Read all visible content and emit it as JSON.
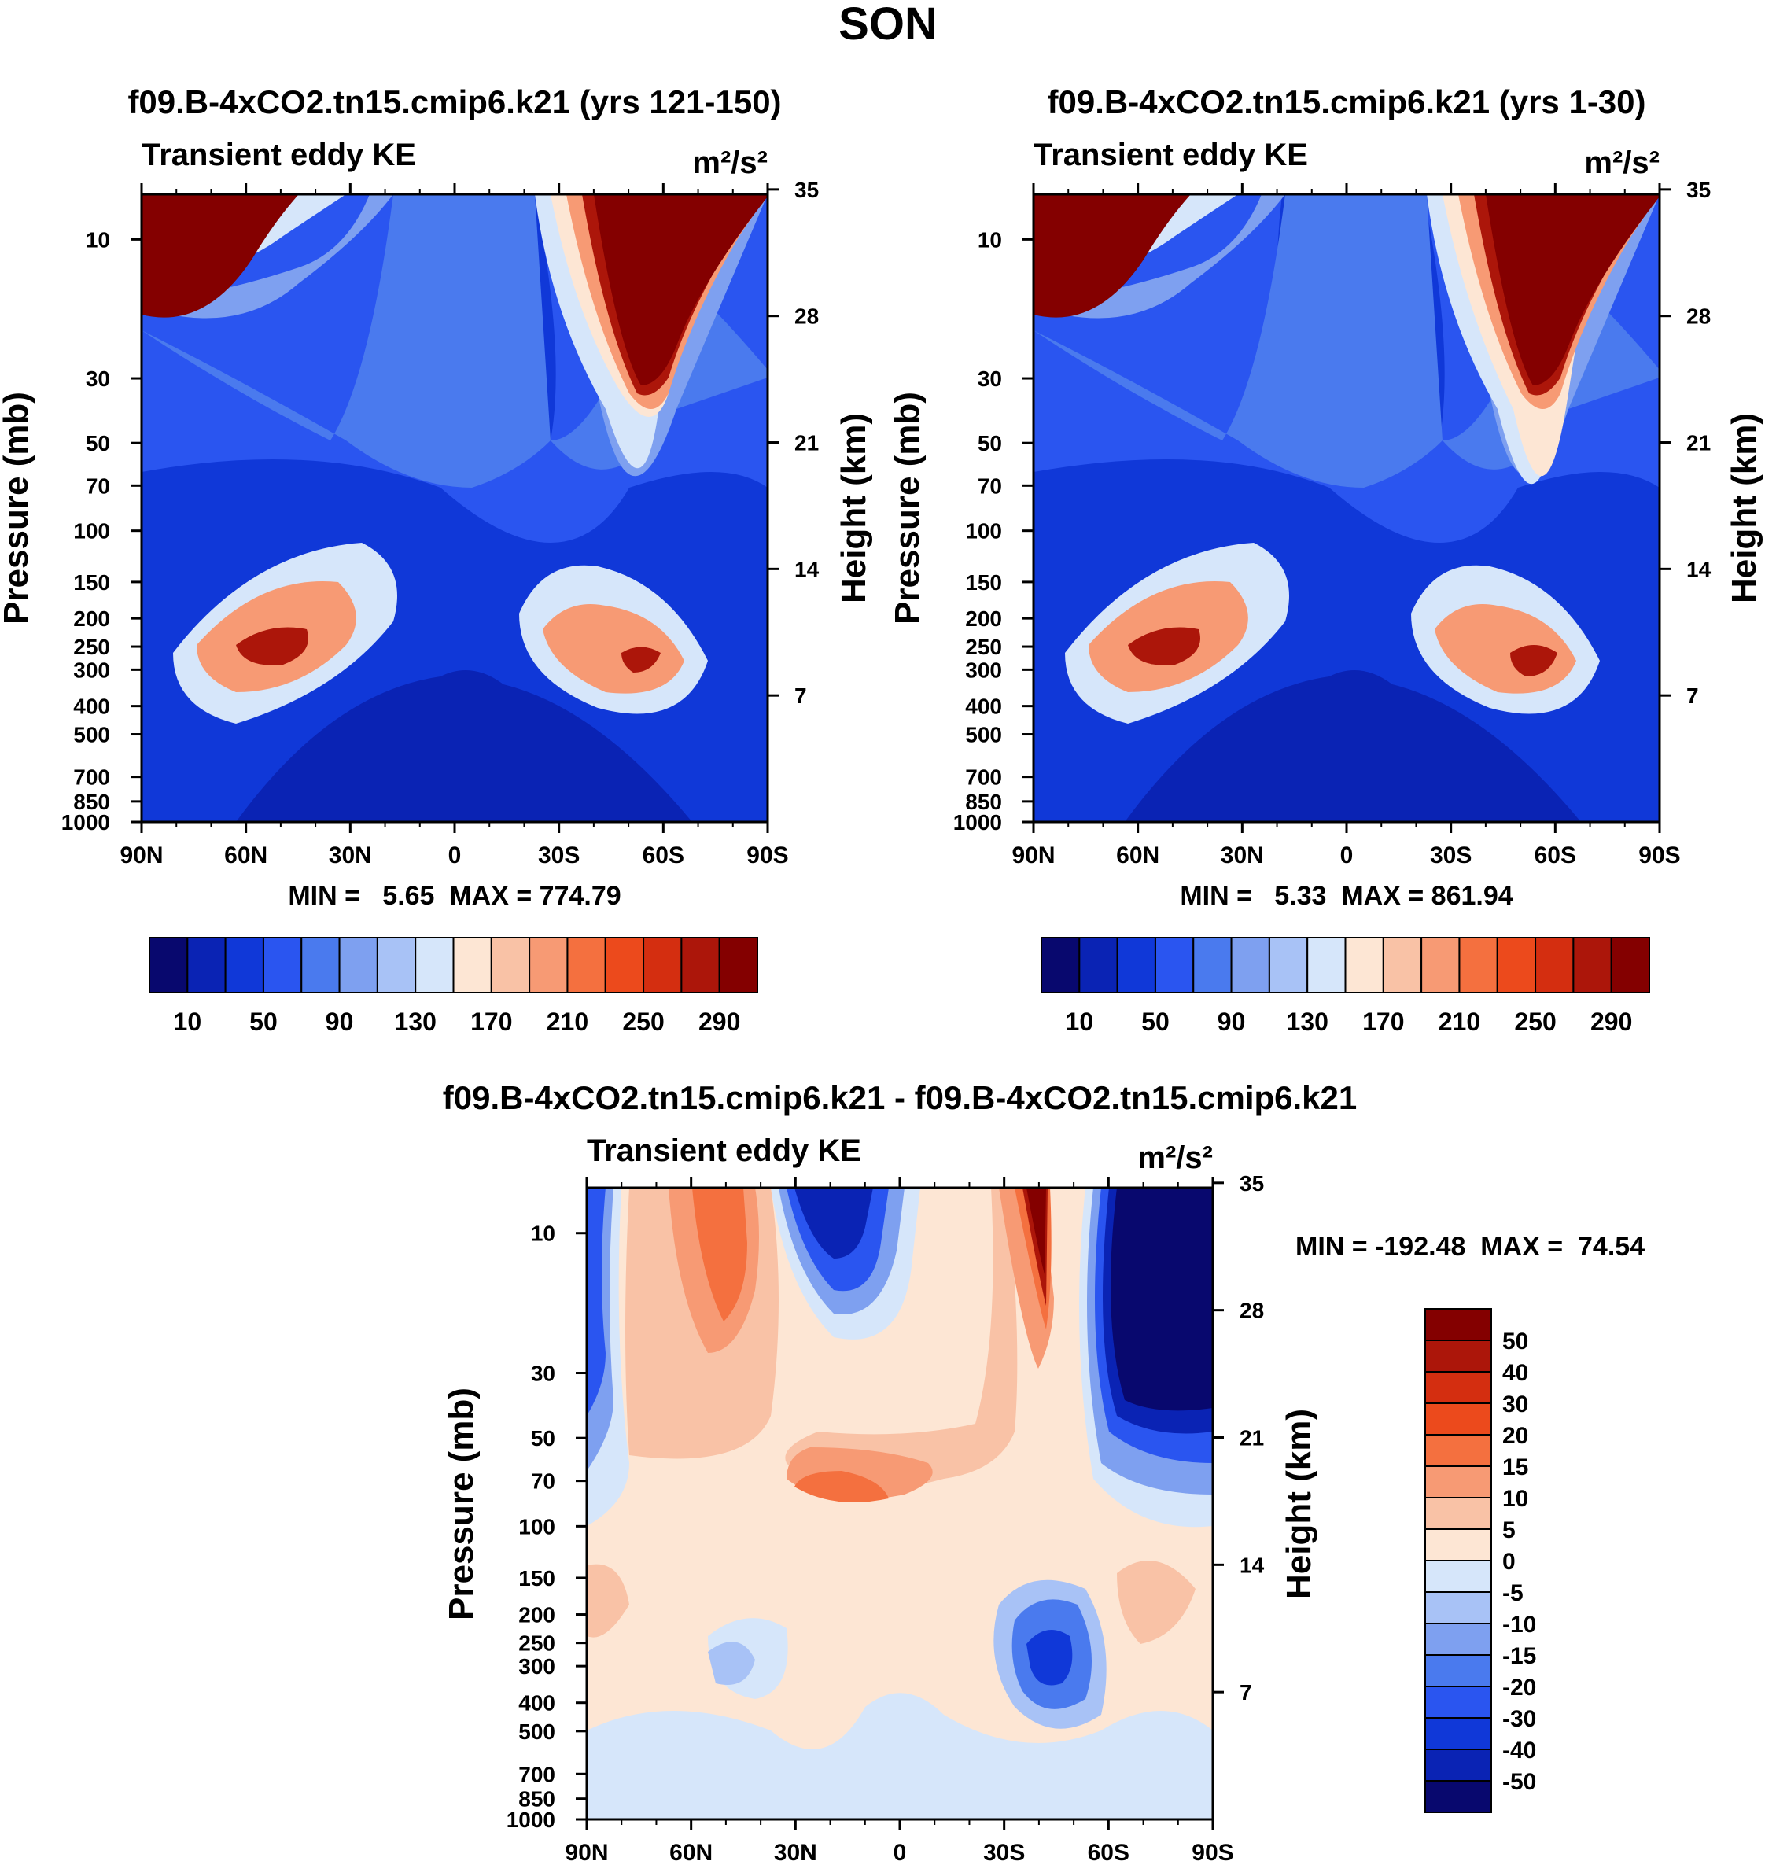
{
  "chart_data": {
    "type": "contour",
    "season_title": "SON",
    "x_tick_labels": [
      "90N",
      "60N",
      "30N",
      "0",
      "30S",
      "60S",
      "90S"
    ],
    "y_pressure_ticks": [
      10,
      30,
      50,
      70,
      100,
      150,
      200,
      250,
      300,
      400,
      500,
      700,
      850,
      1000
    ],
    "y_pressure_tick_labels": [
      "10",
      "30",
      "50",
      "70",
      "100",
      "150",
      "200",
      "250",
      "300",
      "400",
      "500",
      "700",
      "850",
      "1000"
    ],
    "y_height_tick_labels": [
      "35",
      "28",
      "21",
      "14",
      "7"
    ],
    "y_height_ticks": [
      35,
      28,
      21,
      14,
      7
    ],
    "ylabel_left": "Pressure (mb)",
    "ylabel_right": "Height (km)",
    "panels": [
      {
        "title": "f09.B-4xCO2.tn15.cmip6.k21 (yrs 121-150)",
        "left_string": "Transient eddy KE",
        "right_string": "m²/s²",
        "min_max_label": "MIN =   5.65  MAX = 774.79",
        "min": 5.65,
        "max": 774.79,
        "colorbar_labels": [
          "10",
          "50",
          "90",
          "130",
          "170",
          "210",
          "250",
          "290"
        ],
        "levels": [
          10,
          30,
          50,
          70,
          90,
          110,
          130,
          150,
          170,
          190,
          210,
          230,
          250,
          270,
          290
        ]
      },
      {
        "title": "f09.B-4xCO2.tn15.cmip6.k21 (yrs 1-30)",
        "left_string": "Transient eddy KE",
        "right_string": "m²/s²",
        "min_max_label": "MIN =   5.33  MAX = 861.94",
        "min": 5.33,
        "max": 861.94,
        "colorbar_labels": [
          "10",
          "50",
          "90",
          "130",
          "170",
          "210",
          "250",
          "290"
        ],
        "levels": [
          10,
          30,
          50,
          70,
          90,
          110,
          130,
          150,
          170,
          190,
          210,
          230,
          250,
          270,
          290
        ]
      },
      {
        "title": "f09.B-4xCO2.tn15.cmip6.k21 - f09.B-4xCO2.tn15.cmip6.k21",
        "left_string": "Transient eddy KE",
        "right_string": "m²/s²",
        "min_max_label": "MIN = -192.48  MAX =  74.54",
        "min": -192.48,
        "max": 74.54,
        "colorbar_labels": [
          "50",
          "40",
          "30",
          "20",
          "15",
          "10",
          "5",
          "0",
          "-5",
          "-10",
          "-15",
          "-20",
          "-30",
          "-40",
          "-50"
        ],
        "levels": [
          -50,
          -40,
          -30,
          -20,
          -15,
          -10,
          -5,
          0,
          5,
          10,
          15,
          20,
          30,
          40,
          50
        ]
      }
    ],
    "palette": [
      "#08086e",
      "#0a23b4",
      "#1038d8",
      "#2a55f0",
      "#4a7aee",
      "#7ea0f0",
      "#a8c2f6",
      "#d6e6fa",
      "#fde6d4",
      "#f9c2a6",
      "#f79a74",
      "#f4703f",
      "#ec4a1c",
      "#d42e10",
      "#ac160a",
      "#840000"
    ]
  }
}
